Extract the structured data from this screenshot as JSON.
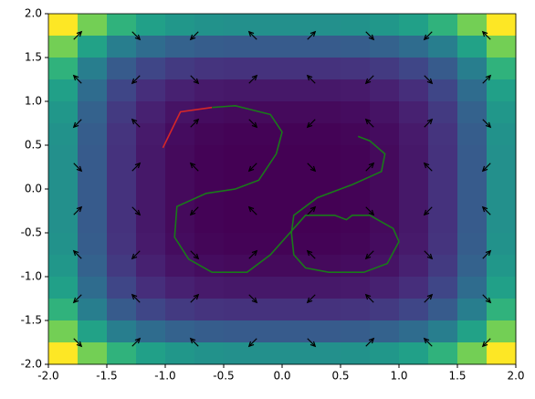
{
  "chart_data": {
    "type": "heatmap",
    "xlim": [
      -2,
      2
    ],
    "ylim": [
      -2,
      2
    ],
    "xticks": [
      {
        "value": -2,
        "label": "-2.0"
      },
      {
        "value": -1.5,
        "label": "-1.5"
      },
      {
        "value": -1,
        "label": "-1.0"
      },
      {
        "value": -0.5,
        "label": "-0.5"
      },
      {
        "value": 0,
        "label": "0.0"
      },
      {
        "value": 0.5,
        "label": "0.5"
      },
      {
        "value": 1,
        "label": "1.0"
      },
      {
        "value": 1.5,
        "label": "1.5"
      },
      {
        "value": 2,
        "label": "2.0"
      }
    ],
    "yticks": [
      {
        "value": -2,
        "label": "-2.0"
      },
      {
        "value": -1.5,
        "label": "-1.5"
      },
      {
        "value": -1,
        "label": "-1.0"
      },
      {
        "value": -0.5,
        "label": "-0.5"
      },
      {
        "value": 0,
        "label": "0.0"
      },
      {
        "value": 0.5,
        "label": "0.5"
      },
      {
        "value": 1,
        "label": "1.0"
      },
      {
        "value": 1.5,
        "label": "1.5"
      },
      {
        "value": 2,
        "label": "2.0"
      }
    ],
    "zlim": [
      0,
      1.54
    ],
    "values": [
      [
        1.54,
        1.21,
        0.99,
        0.87,
        0.81,
        0.78,
        0.77,
        0.77,
        0.77,
        0.77,
        0.78,
        0.81,
        0.87,
        0.99,
        1.21,
        1.54
      ],
      [
        1.21,
        0.88,
        0.66,
        0.54,
        0.48,
        0.45,
        0.44,
        0.44,
        0.44,
        0.44,
        0.45,
        0.48,
        0.54,
        0.66,
        0.88,
        1.21
      ],
      [
        0.99,
        0.66,
        0.44,
        0.32,
        0.26,
        0.23,
        0.22,
        0.22,
        0.22,
        0.22,
        0.23,
        0.26,
        0.32,
        0.44,
        0.66,
        0.99
      ],
      [
        0.87,
        0.54,
        0.32,
        0.2,
        0.14,
        0.11,
        0.1,
        0.1,
        0.1,
        0.1,
        0.11,
        0.14,
        0.2,
        0.32,
        0.54,
        0.87
      ],
      [
        0.81,
        0.48,
        0.26,
        0.14,
        0.08,
        0.05,
        0.04,
        0.04,
        0.04,
        0.04,
        0.05,
        0.08,
        0.14,
        0.26,
        0.48,
        0.81
      ],
      [
        0.78,
        0.45,
        0.23,
        0.11,
        0.05,
        0.02,
        0.01,
        0.01,
        0.01,
        0.01,
        0.02,
        0.05,
        0.11,
        0.23,
        0.45,
        0.78
      ],
      [
        0.77,
        0.44,
        0.22,
        0.1,
        0.04,
        0.01,
        0,
        0,
        0,
        0,
        0.01,
        0.04,
        0.1,
        0.22,
        0.44,
        0.77
      ],
      [
        0.77,
        0.44,
        0.22,
        0.1,
        0.04,
        0.01,
        0,
        0,
        0,
        0,
        0.01,
        0.04,
        0.1,
        0.22,
        0.44,
        0.77
      ],
      [
        0.77,
        0.44,
        0.22,
        0.1,
        0.04,
        0.01,
        0,
        0,
        0,
        0,
        0.01,
        0.04,
        0.1,
        0.22,
        0.44,
        0.77
      ],
      [
        0.77,
        0.44,
        0.22,
        0.1,
        0.04,
        0.01,
        0,
        0,
        0,
        0,
        0.01,
        0.04,
        0.1,
        0.22,
        0.44,
        0.77
      ],
      [
        0.78,
        0.45,
        0.23,
        0.11,
        0.05,
        0.02,
        0.01,
        0.01,
        0.01,
        0.01,
        0.02,
        0.05,
        0.11,
        0.23,
        0.45,
        0.78
      ],
      [
        0.81,
        0.48,
        0.26,
        0.14,
        0.08,
        0.05,
        0.04,
        0.04,
        0.04,
        0.04,
        0.05,
        0.08,
        0.14,
        0.26,
        0.48,
        0.81
      ],
      [
        0.87,
        0.54,
        0.32,
        0.2,
        0.14,
        0.11,
        0.1,
        0.1,
        0.1,
        0.1,
        0.11,
        0.14,
        0.2,
        0.32,
        0.54,
        0.87
      ],
      [
        0.99,
        0.66,
        0.44,
        0.32,
        0.26,
        0.23,
        0.22,
        0.22,
        0.22,
        0.22,
        0.23,
        0.26,
        0.32,
        0.44,
        0.66,
        0.99
      ],
      [
        1.21,
        0.88,
        0.66,
        0.54,
        0.48,
        0.45,
        0.44,
        0.44,
        0.44,
        0.44,
        0.45,
        0.48,
        0.54,
        0.66,
        0.88,
        1.21
      ],
      [
        1.54,
        1.21,
        0.99,
        0.87,
        0.81,
        0.78,
        0.77,
        0.77,
        0.77,
        0.77,
        0.78,
        0.81,
        0.87,
        0.99,
        1.21,
        1.54
      ]
    ],
    "quiver": {
      "x": [
        -1.75,
        -1.25,
        -0.75,
        -0.25,
        0.25,
        0.75,
        1.25,
        1.75
      ],
      "y": [
        -1.75,
        -1.25,
        -0.75,
        -0.25,
        0.25,
        0.75,
        1.25,
        1.75
      ],
      "u": [
        [
          0.5,
          0.5,
          -0.5,
          -0.5,
          0.5,
          0.5,
          -0.5,
          -0.5
        ],
        [
          -0.5,
          -0.5,
          0.5,
          0.5,
          -0.5,
          -0.5,
          0.5,
          0.5
        ],
        [
          -0.5,
          -0.5,
          0.5,
          0.5,
          -0.5,
          -0.5,
          0.5,
          0.5
        ],
        [
          0.5,
          0.5,
          -0.5,
          -0.5,
          0.5,
          0.5,
          -0.5,
          -0.5
        ],
        [
          0.5,
          0.5,
          -0.5,
          -0.5,
          0.5,
          0.5,
          -0.5,
          -0.5
        ],
        [
          -0.5,
          -0.5,
          0.5,
          0.5,
          -0.5,
          -0.5,
          0.5,
          0.5
        ],
        [
          -0.5,
          -0.5,
          0.5,
          0.5,
          -0.5,
          -0.5,
          0.5,
          0.5
        ],
        [
          0.5,
          0.5,
          -0.5,
          -0.5,
          0.5,
          0.5,
          -0.5,
          -0.5
        ]
      ],
      "v": [
        [
          -0.5,
          0.5,
          0.5,
          -0.5,
          -0.5,
          0.5,
          0.5,
          -0.5
        ],
        [
          -0.5,
          0.5,
          0.5,
          -0.5,
          -0.5,
          0.5,
          0.5,
          -0.5
        ],
        [
          0.5,
          -0.5,
          -0.5,
          0.5,
          0.5,
          -0.5,
          -0.5,
          0.5
        ],
        [
          0.5,
          -0.5,
          -0.5,
          0.5,
          0.5,
          -0.5,
          -0.5,
          0.5
        ],
        [
          -0.5,
          0.5,
          0.5,
          -0.5,
          -0.5,
          0.5,
          0.5,
          -0.5
        ],
        [
          -0.5,
          0.5,
          0.5,
          -0.5,
          -0.5,
          0.5,
          0.5,
          -0.5
        ],
        [
          0.5,
          -0.5,
          -0.5,
          0.5,
          0.5,
          -0.5,
          -0.5,
          0.5
        ],
        [
          0.5,
          -0.5,
          -0.5,
          0.5,
          0.5,
          -0.5,
          -0.5,
          0.5
        ]
      ],
      "color": "#000000"
    },
    "series": [
      {
        "color": "#d62728",
        "x": [
          -1.02,
          -0.87,
          -0.6
        ],
        "y": [
          0.47,
          0.88,
          0.93
        ]
      },
      {
        "color": "#1a7a1a",
        "x": [
          -0.6,
          -0.4,
          -0.1,
          0,
          -0.05,
          -0.2,
          -0.4,
          -0.65,
          -0.9,
          -0.92,
          -0.8,
          -0.6,
          -0.3,
          -0.1,
          0.1,
          0.2,
          0.45,
          0.55,
          0.6,
          0.75,
          0.95,
          1.0,
          0.9,
          0.7,
          0.4,
          0.2,
          0.1,
          0.08,
          0.1,
          0.3,
          0.6,
          0.85,
          0.88,
          0.75,
          0.65
        ],
        "y": [
          0.93,
          0.95,
          0.85,
          0.65,
          0.4,
          0.1,
          0,
          -0.05,
          -0.2,
          -0.55,
          -0.8,
          -0.95,
          -0.95,
          -0.75,
          -0.45,
          -0.3,
          -0.3,
          -0.35,
          -0.3,
          -0.3,
          -0.45,
          -0.6,
          -0.85,
          -0.95,
          -0.95,
          -0.9,
          -0.75,
          -0.5,
          -0.3,
          -0.1,
          0.05,
          0.2,
          0.4,
          0.55,
          0.6
        ]
      }
    ]
  }
}
